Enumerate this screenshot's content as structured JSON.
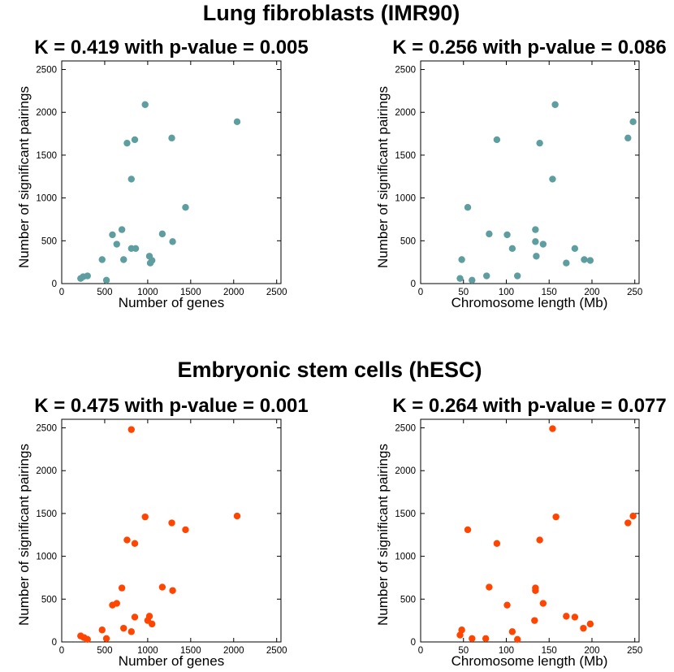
{
  "sections": [
    {
      "title": "Lung fibroblasts (IMR90)"
    },
    {
      "title": "Embryonic stem cells (hESC)"
    }
  ],
  "colors": {
    "imr90": "#5f9ea0",
    "hesc": "#ff4500"
  },
  "chart_data": [
    {
      "type": "scatter",
      "title": "K = 0.419 with p-value = 0.005",
      "xlabel": "Number of genes",
      "ylabel": "Number of significant pairings",
      "xlim": [
        0,
        2550
      ],
      "ylim": [
        0,
        2600
      ],
      "xticks": [
        0,
        500,
        1000,
        1500,
        2000,
        2500
      ],
      "yticks": [
        0,
        500,
        1000,
        1500,
        2000,
        2500
      ],
      "color": "#5f9ea0",
      "x": [
        2040,
        970,
        1280,
        850,
        760,
        810,
        1440,
        700,
        590,
        1170,
        640,
        1290,
        810,
        860,
        470,
        720,
        1020,
        1050,
        1030,
        300,
        250,
        220,
        520
      ],
      "y": [
        1890,
        2090,
        1700,
        1680,
        1640,
        1220,
        890,
        630,
        570,
        580,
        460,
        490,
        410,
        410,
        280,
        280,
        320,
        270,
        240,
        90,
        80,
        60,
        40
      ]
    },
    {
      "type": "scatter",
      "title": "K = 0.256 with p-value = 0.086",
      "xlabel": "Chromosome length (Mb)",
      "ylabel": "Number of significant pairings",
      "xlim": [
        0,
        255
      ],
      "ylim": [
        0,
        2600
      ],
      "xticks": [
        0,
        50,
        100,
        150,
        200,
        250
      ],
      "yticks": [
        0,
        500,
        1000,
        1500,
        2000,
        2500
      ],
      "color": "#5f9ea0",
      "x": [
        157,
        248,
        242,
        89,
        139,
        154,
        55,
        134,
        80,
        101,
        134,
        143,
        107,
        180,
        135,
        48,
        191,
        198,
        170,
        46,
        60,
        77,
        113
      ],
      "y": [
        2090,
        1890,
        1700,
        1680,
        1640,
        1220,
        890,
        630,
        580,
        570,
        490,
        460,
        410,
        410,
        320,
        280,
        280,
        270,
        240,
        60,
        40,
        90,
        90
      ]
    },
    {
      "type": "scatter",
      "title": "K = 0.475 with p-value = 0.001",
      "xlabel": "Number of genes",
      "ylabel": "Number of significant pairings",
      "xlim": [
        0,
        2550
      ],
      "ylim": [
        0,
        2600
      ],
      "xticks": [
        0,
        500,
        1000,
        1500,
        2000,
        2500
      ],
      "yticks": [
        0,
        500,
        1000,
        1500,
        2000,
        2500
      ],
      "color": "#ff4500",
      "x": [
        810,
        2040,
        970,
        1280,
        1440,
        760,
        850,
        1170,
        1290,
        700,
        640,
        590,
        850,
        1020,
        1000,
        1050,
        720,
        470,
        810,
        220,
        260,
        300,
        520
      ],
      "y": [
        2480,
        1470,
        1460,
        1390,
        1310,
        1190,
        1150,
        640,
        600,
        630,
        450,
        430,
        290,
        300,
        250,
        210,
        160,
        140,
        120,
        70,
        50,
        30,
        40
      ]
    },
    {
      "type": "scatter",
      "title": "K = 0.264 with p-value = 0.077",
      "xlabel": "Chromosome length (Mb)",
      "ylabel": "Number of significant pairings",
      "xlim": [
        0,
        255
      ],
      "ylim": [
        0,
        2600
      ],
      "xticks": [
        0,
        50,
        100,
        150,
        200,
        250
      ],
      "yticks": [
        0,
        500,
        1000,
        1500,
        2000,
        2500
      ],
      "color": "#ff4500",
      "x": [
        154,
        248,
        158,
        242,
        55,
        89,
        139,
        80,
        134,
        134,
        101,
        143,
        170,
        180,
        198,
        133,
        190,
        107,
        48,
        46,
        60,
        76,
        113
      ],
      "y": [
        2490,
        1470,
        1460,
        1390,
        1310,
        1150,
        1190,
        640,
        630,
        600,
        430,
        450,
        300,
        290,
        210,
        250,
        160,
        120,
        140,
        80,
        40,
        40,
        30
      ]
    }
  ]
}
